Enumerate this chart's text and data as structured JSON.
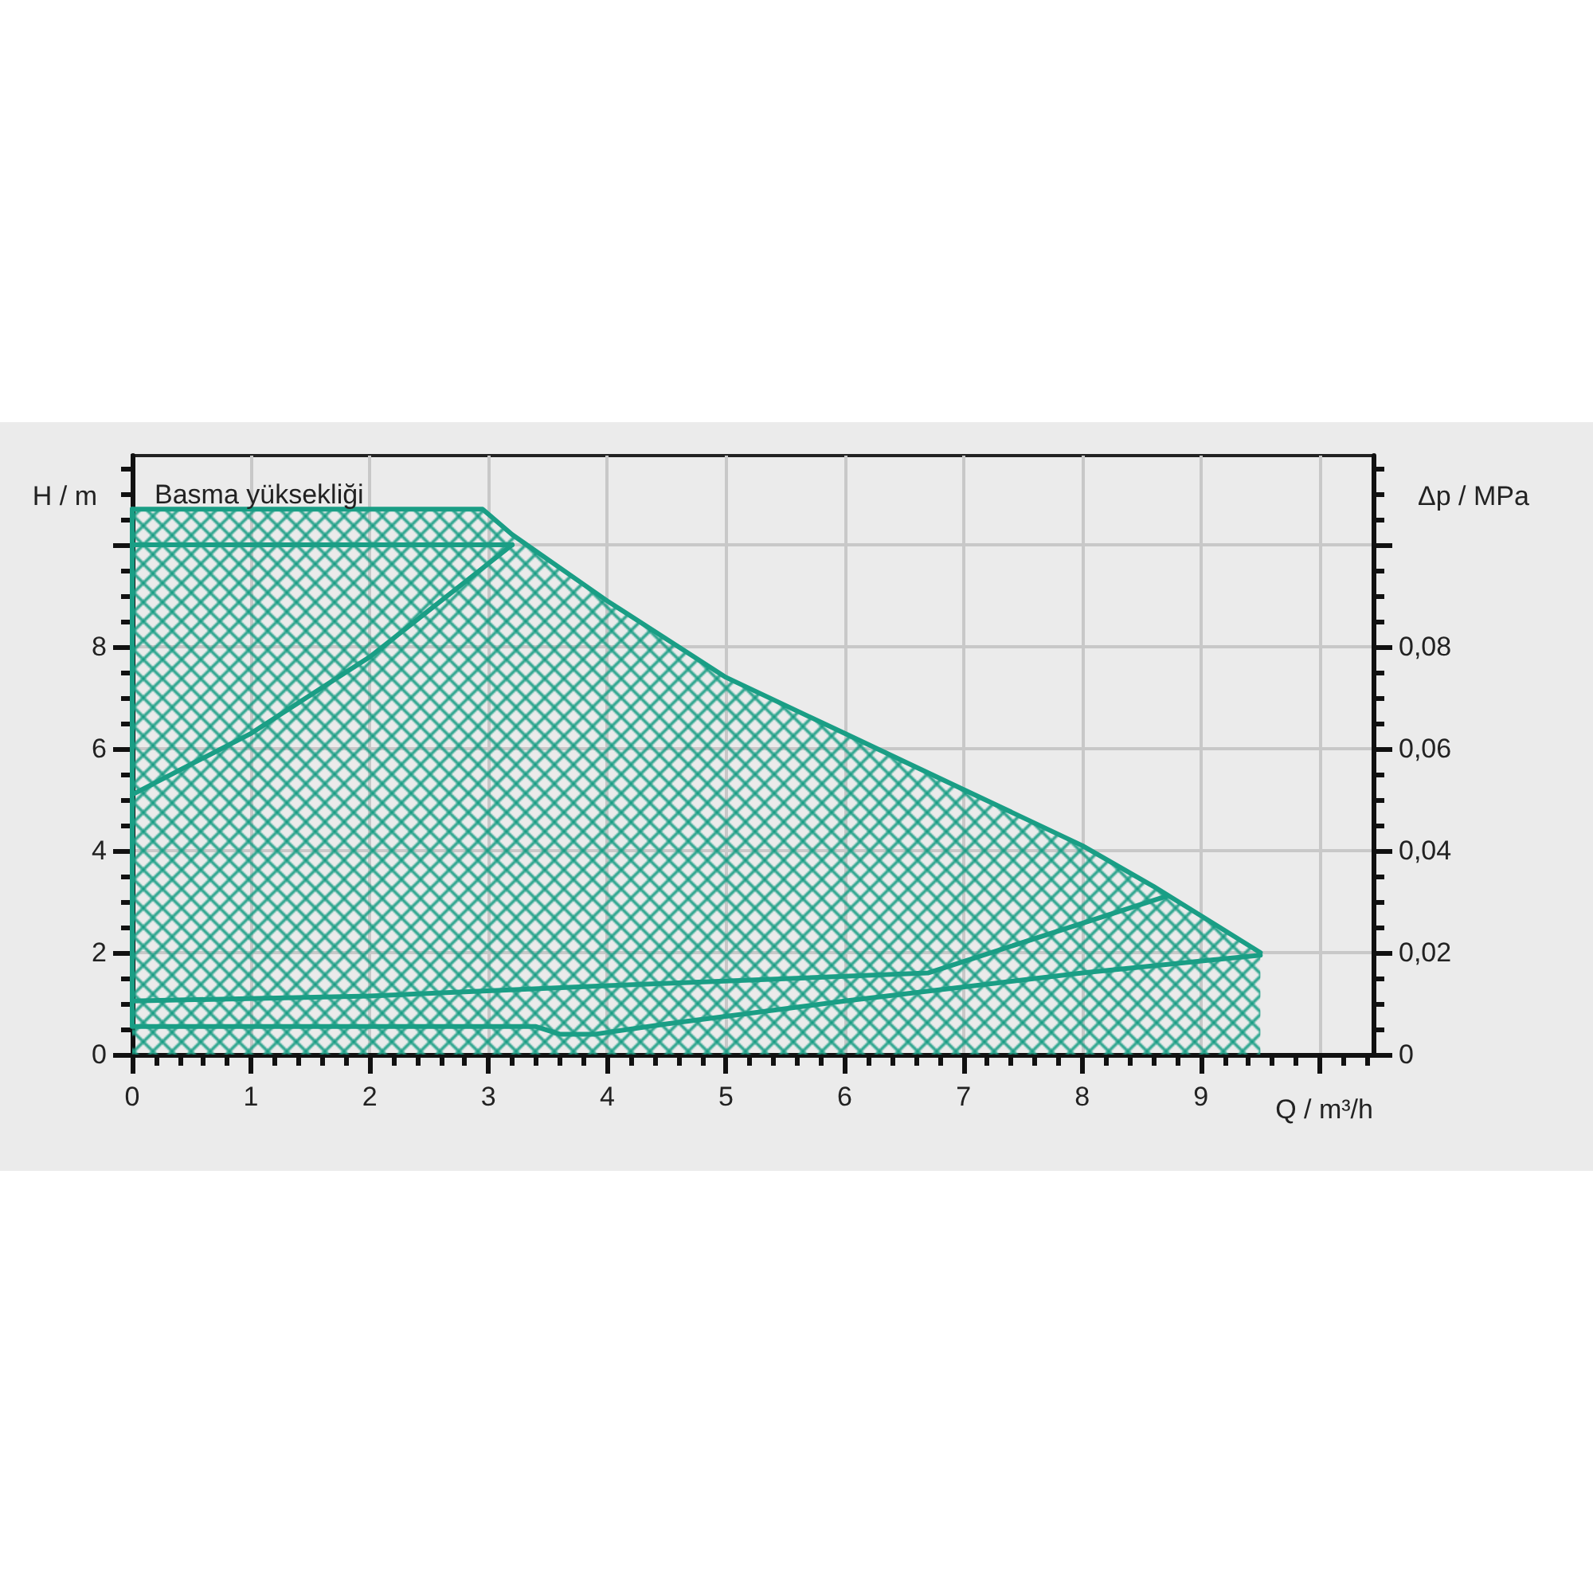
{
  "chart_data": {
    "type": "line",
    "xlabel": "Q / m³/h",
    "ylabel": "H / m",
    "y2label": "Δp / MPa",
    "annotations": [
      "Basma yüksekliği"
    ],
    "xlim": [
      0,
      10.45
    ],
    "ylim": [
      0,
      11.75
    ],
    "y2lim": [
      0,
      0.1175
    ],
    "xticks": [
      0,
      1,
      2,
      3,
      4,
      5,
      6,
      7,
      8,
      9,
      {
        "value": 10,
        "label": null
      }
    ],
    "yticks": [
      0,
      2,
      4,
      6,
      8,
      {
        "value": 10,
        "label": null
      }
    ],
    "y2ticks": [
      0,
      {
        "value": 0.02,
        "label": "0,02"
      },
      {
        "value": 0.04,
        "label": "0,04"
      },
      {
        "value": 0.06,
        "label": "0,06"
      },
      {
        "value": 0.08,
        "label": "0,08"
      },
      {
        "value": 0.1,
        "label": null
      }
    ],
    "grid": true,
    "marker": "none",
    "line_style": "solid",
    "series": [
      {
        "type": "area",
        "color": "#1a9e85",
        "x": [
          0,
          2.95,
          3.2,
          4,
          5,
          6,
          7,
          8,
          8.6,
          9.5
        ],
        "values": [
          10.7,
          10.7,
          10.2,
          8.9,
          7.4,
          6.3,
          5.2,
          4.1,
          3.3,
          2.0
        ]
      },
      {
        "color": "#1a9e85",
        "x": [
          9.5,
          8,
          6,
          4.5,
          3.9,
          3.6,
          3.4,
          0,
          0
        ],
        "values": [
          1.95,
          1.6,
          1.05,
          0.6,
          0.4,
          0.4,
          0.55,
          0.55,
          10.7
        ]
      },
      {
        "color": "#1a9e85",
        "x": [
          0,
          3.2
        ],
        "values": [
          10.0,
          10.0
        ]
      },
      {
        "color": "#1a9e85",
        "x": [
          0,
          1,
          2,
          3.2
        ],
        "values": [
          5.1,
          6.3,
          7.8,
          10.0
        ]
      },
      {
        "color": "#1a9e85",
        "x": [
          0,
          2,
          4,
          6.7,
          8.7
        ],
        "values": [
          1.05,
          1.15,
          1.35,
          1.6,
          3.1
        ]
      }
    ]
  }
}
